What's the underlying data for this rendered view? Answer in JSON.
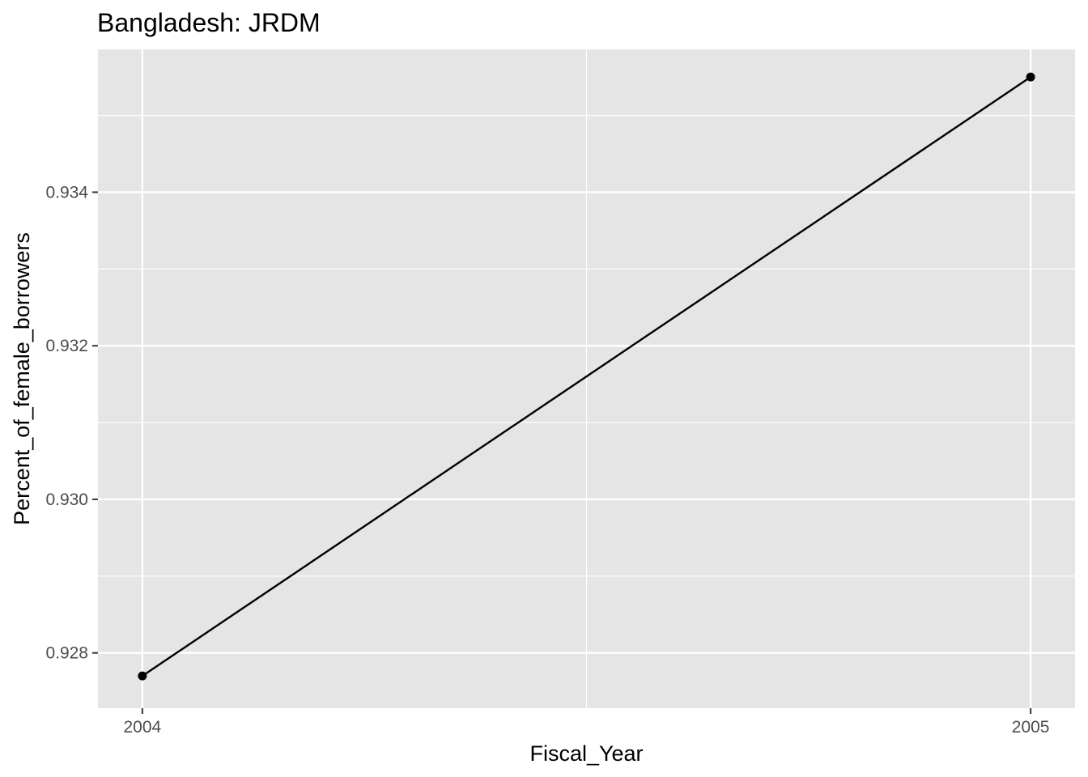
{
  "chart_data": {
    "type": "line",
    "title": "Bangladesh:  JRDM",
    "xlabel": "Fiscal_Year",
    "ylabel": "Percent_of_female_borrowers",
    "x": [
      2004,
      2005
    ],
    "series": [
      {
        "values": [
          0.9277,
          0.9355
        ]
      }
    ],
    "xlim": [
      2003.95,
      2005.05
    ],
    "ylim": [
      0.92728,
      0.93586
    ],
    "xticks": [
      2004,
      2005
    ],
    "xtick_labels": [
      "2004",
      "2005"
    ],
    "xticks_minor": [
      2004.5
    ],
    "yticks": [
      0.928,
      0.93,
      0.932,
      0.934
    ],
    "ytick_labels": [
      "0.928",
      "0.930",
      "0.932",
      "0.934"
    ],
    "yticks_minor": [
      0.929,
      0.931,
      0.933,
      0.935
    ],
    "grid": true,
    "colors": {
      "panel": "#e5e5e5",
      "grid": "#ffffff",
      "line": "#000000",
      "point": "#000000"
    }
  }
}
